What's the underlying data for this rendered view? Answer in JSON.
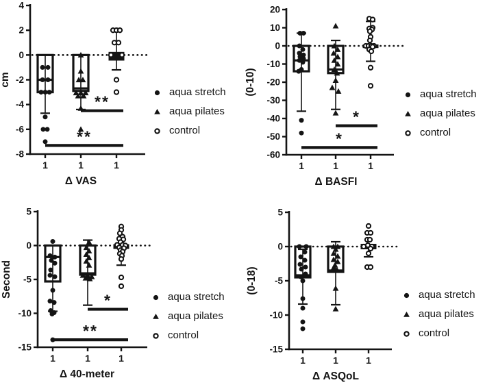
{
  "figure": {
    "ink": "#141414",
    "background": "#ffffff"
  },
  "chart_data": {
    "type": "box-scatter",
    "legend_position": "right-of-each-panel",
    "grid": false,
    "legend": [
      {
        "marker": "filled-circle",
        "label": "aqua stretch"
      },
      {
        "marker": "filled-triangle",
        "label": "aqua pilates"
      },
      {
        "marker": "open-circle",
        "label": "control"
      }
    ],
    "panels": [
      {
        "xlabel": "Δ VAS",
        "ylabel": "cm",
        "ylim": [
          -8,
          4
        ],
        "yticks": [
          4,
          2,
          0,
          -2,
          -4,
          -6,
          -8
        ],
        "xticklabels": [
          "1",
          "1",
          "1"
        ],
        "zero_line": true,
        "groups": [
          {
            "name": "aqua stretch",
            "marker": "filled-circle",
            "box": {
              "top": 0,
              "bottom": -3,
              "median": -2,
              "filled": false
            },
            "whisker_high": null,
            "whisker_low": -4.7,
            "points": [
              [
                -1,
                -4
              ],
              [
                -1,
                4
              ],
              [
                -2,
                -4
              ],
              [
                -2,
                4
              ],
              [
                -3,
                -6
              ],
              [
                -3,
                0
              ],
              [
                -3,
                6
              ],
              [
                -5,
                0
              ],
              [
                -6,
                -3
              ],
              [
                -6,
                3
              ],
              [
                -7,
                0
              ]
            ]
          },
          {
            "name": "aqua pilates",
            "marker": "filled-triangle",
            "box": {
              "top": 0,
              "bottom": -2.9,
              "median": -2.7,
              "filled": false
            },
            "whisker_high": null,
            "whisker_low": -4.4,
            "points": [
              [
                0,
                0
              ],
              [
                -1.3,
                0
              ],
              [
                -2,
                -3
              ],
              [
                -2,
                3
              ],
              [
                -3.05,
                -7
              ],
              [
                -3.05,
                0
              ],
              [
                -3.05,
                7
              ],
              [
                -3.3,
                -4
              ],
              [
                -3.3,
                4
              ],
              [
                -4.3,
                0
              ],
              [
                -6,
                0
              ]
            ]
          },
          {
            "name": "control",
            "marker": "open-circle",
            "box": {
              "top": 0.25,
              "bottom": -0.45,
              "median": 0,
              "filled": true
            },
            "whisker_high": 2.0,
            "whisker_low": -1.2,
            "points": [
              [
                2,
                -5
              ],
              [
                2,
                0
              ],
              [
                2,
                5
              ],
              [
                1,
                -3
              ],
              [
                1,
                3
              ],
              [
                0,
                -8
              ],
              [
                0,
                8
              ],
              [
                -2,
                0
              ],
              [
                -3,
                0
              ]
            ]
          }
        ],
        "significance": [
          {
            "from": 1,
            "to": 2,
            "y": -4.5,
            "label": "**"
          },
          {
            "from": 0,
            "to": 2,
            "y": -7.3,
            "label": "**"
          }
        ]
      },
      {
        "xlabel": "Δ BASFI",
        "ylabel": "(0-10)",
        "ylim": [
          -60,
          20
        ],
        "yticks": [
          20,
          10,
          0,
          -10,
          -20,
          -30,
          -40,
          -50,
          -60
        ],
        "xticklabels": [
          "1",
          "1",
          "1"
        ],
        "zero_line": true,
        "groups": [
          {
            "name": "aqua stretch",
            "marker": "filled-circle",
            "box": {
              "top": 0,
              "bottom": -14,
              "median": -8,
              "filled": false
            },
            "whisker_high": 7,
            "whisker_low": -36,
            "points": [
              [
                7,
                -2
              ],
              [
                7,
                3
              ],
              [
                0,
                -3
              ],
              [
                -2,
                2
              ],
              [
                -4,
                -3
              ],
              [
                -5,
                3
              ],
              [
                -6,
                -2
              ],
              [
                -7,
                3
              ],
              [
                -8,
                -3
              ],
              [
                -9,
                2
              ],
              [
                -13,
                0
              ],
              [
                -14,
                -4
              ],
              [
                -41,
                0
              ],
              [
                -48,
                0
              ]
            ]
          },
          {
            "name": "aqua pilates",
            "marker": "filled-triangle",
            "box": {
              "top": 0,
              "bottom": -15,
              "median": -13,
              "filled": false
            },
            "whisker_high": 3,
            "whisker_low": -35,
            "points": [
              [
                11,
                0
              ],
              [
                0,
                -2
              ],
              [
                -2,
                3
              ],
              [
                -4,
                -3
              ],
              [
                -6,
                3
              ],
              [
                -8,
                -2
              ],
              [
                -10,
                3
              ],
              [
                -13,
                -2
              ],
              [
                -15,
                2
              ],
              [
                -19,
                0
              ],
              [
                -23,
                -5
              ],
              [
                -25,
                4
              ],
              [
                -37,
                0
              ]
            ]
          },
          {
            "name": "control",
            "marker": "open-circle",
            "box": {
              "top": 0.8,
              "bottom": -1.2,
              "median": 0,
              "filled": true
            },
            "whisker_high": 13.5,
            "whisker_low": -8.5,
            "points": [
              [
                15,
                -2
              ],
              [
                14.5,
                3
              ],
              [
                10,
                3
              ],
              [
                9.5,
                -2
              ],
              [
                9,
                2
              ],
              [
                8,
                -1
              ],
              [
                5,
                0
              ],
              [
                3,
                -1
              ],
              [
                0,
                -7
              ],
              [
                0,
                -3
              ],
              [
                0,
                1
              ],
              [
                0,
                5
              ],
              [
                -0.5,
                3
              ],
              [
                -2,
                -2
              ],
              [
                -3,
                1
              ],
              [
                -12,
                0
              ],
              [
                -22,
                0
              ]
            ]
          }
        ],
        "significance": [
          {
            "from": 1,
            "to": 2,
            "y": -44,
            "label": "*"
          },
          {
            "from": 0,
            "to": 2,
            "y": -56,
            "label": "*"
          }
        ]
      },
      {
        "xlabel": "Δ 40-meter",
        "ylabel": "Second",
        "ylim": [
          -15,
          5
        ],
        "yticks": [
          5,
          0,
          -5,
          -10,
          -15
        ],
        "xticklabels": [
          "1",
          "1",
          "1"
        ],
        "zero_line": true,
        "groups": [
          {
            "name": "aqua stretch",
            "marker": "filled-circle",
            "box": {
              "top": 0,
              "bottom": -5.3,
              "median": -1.7,
              "filled": false
            },
            "whisker_high": null,
            "whisker_low": -9.7,
            "points": [
              [
                0.6,
                0
              ],
              [
                -1.5,
                -4
              ],
              [
                -1.7,
                3
              ],
              [
                -2.2,
                -2
              ],
              [
                -2.6,
                3
              ],
              [
                -3.6,
                -3
              ],
              [
                -4.4,
                -4
              ],
              [
                -4.6,
                3
              ],
              [
                -6.6,
                0
              ],
              [
                -8.2,
                -4
              ],
              [
                -8.4,
                2
              ],
              [
                -9.6,
                -3
              ],
              [
                -9.9,
                2
              ],
              [
                -10.1,
                -1
              ],
              [
                -13.9,
                0
              ]
            ]
          },
          {
            "name": "aqua pilates",
            "marker": "filled-triangle",
            "box": {
              "top": 0,
              "bottom": -4.3,
              "median": -4.1,
              "filled": false
            },
            "whisker_high": 0.8,
            "whisker_low": -8.8,
            "points": [
              [
                0.5,
                2
              ],
              [
                -0.3,
                -2
              ],
              [
                -0.8,
                2
              ],
              [
                -1.3,
                -2
              ],
              [
                -1.8,
                2
              ],
              [
                -2.3,
                -2
              ],
              [
                -2.9,
                2
              ],
              [
                -4.4,
                -7
              ],
              [
                -4.5,
                0
              ],
              [
                -4.6,
                6
              ],
              [
                -4.8,
                -3
              ],
              [
                -4.9,
                3
              ]
            ]
          },
          {
            "name": "control",
            "marker": "open-circle",
            "box": {
              "top": 0.2,
              "bottom": -0.5,
              "median": 0,
              "filled": true
            },
            "whisker_high": 1.0,
            "whisker_low": -2.9,
            "points": [
              [
                2.8,
                0
              ],
              [
                2.3,
                0
              ],
              [
                1.8,
                -2
              ],
              [
                1.3,
                2
              ],
              [
                1.0,
                -3
              ],
              [
                0.9,
                3
              ],
              [
                0.5,
                -1
              ],
              [
                0.1,
                -6
              ],
              [
                0.1,
                2
              ],
              [
                0,
                6
              ],
              [
                -0.3,
                -3
              ],
              [
                -0.4,
                4
              ],
              [
                -0.7,
                -1
              ],
              [
                -0.9,
                2
              ],
              [
                -1.2,
                -2
              ],
              [
                -1.5,
                1
              ],
              [
                -2.0,
                0
              ],
              [
                -4.7,
                0
              ],
              [
                -6.0,
                0
              ]
            ]
          }
        ],
        "significance": [
          {
            "from": 1,
            "to": 2,
            "y": -9.4,
            "label": "*"
          },
          {
            "from": 0,
            "to": 2,
            "y": -13.9,
            "label": "**"
          }
        ]
      },
      {
        "xlabel": "Δ ASQoL",
        "ylabel": "(0-18)",
        "ylim": [
          -15,
          5
        ],
        "yticks": [
          5,
          0,
          -5,
          -10,
          -15
        ],
        "xticklabels": [
          "1",
          "1",
          "1"
        ],
        "zero_line": true,
        "groups": [
          {
            "name": "aqua stretch",
            "marker": "filled-circle",
            "box": {
              "top": 0,
              "bottom": -4.5,
              "median": -4.2,
              "filled": false
            },
            "whisker_high": -0.4,
            "whisker_low": -8.4,
            "points": [
              [
                0,
                -5
              ],
              [
                0,
                5
              ],
              [
                -0.8,
                3
              ],
              [
                -1.5,
                -3
              ],
              [
                -2.0,
                3
              ],
              [
                -2.6,
                -4
              ],
              [
                -3.0,
                4
              ],
              [
                -3.3,
                -2
              ],
              [
                -4.0,
                4
              ],
              [
                -4.4,
                -3
              ],
              [
                -5.0,
                0
              ],
              [
                -7.6,
                0
              ],
              [
                -9.0,
                0
              ],
              [
                -11,
                0
              ],
              [
                -12,
                0
              ]
            ]
          },
          {
            "name": "aqua pilates",
            "marker": "filled-triangle",
            "box": {
              "top": 0,
              "bottom": -3.7,
              "median": -3.5,
              "filled": false
            },
            "whisker_high": 0.7,
            "whisker_low": -8.5,
            "points": [
              [
                0,
                -3
              ],
              [
                0,
                3
              ],
              [
                -0.4,
                0
              ],
              [
                -1.0,
                -3
              ],
              [
                -1.4,
                3
              ],
              [
                -1.9,
                -3
              ],
              [
                -2.2,
                3
              ],
              [
                -2.7,
                -1
              ],
              [
                -3.1,
                -3
              ],
              [
                -3.4,
                2
              ],
              [
                -6.1,
                0
              ],
              [
                -9.1,
                0
              ]
            ]
          },
          {
            "name": "control",
            "marker": "open-circle",
            "box": {
              "top": 0.4,
              "bottom": -0.4,
              "median": 0,
              "filled": true
            },
            "whisker_high": null,
            "whisker_low": -1.5,
            "points": [
              [
                3,
                0
              ],
              [
                2,
                -2
              ],
              [
                2,
                3
              ],
              [
                1,
                -2
              ],
              [
                1,
                2
              ],
              [
                0,
                -7
              ],
              [
                0.2,
                -1
              ],
              [
                0,
                5
              ],
              [
                -0.3,
                3
              ],
              [
                -1,
                0
              ],
              [
                -3,
                -2
              ],
              [
                -3,
                3
              ]
            ]
          }
        ],
        "significance": []
      }
    ]
  }
}
